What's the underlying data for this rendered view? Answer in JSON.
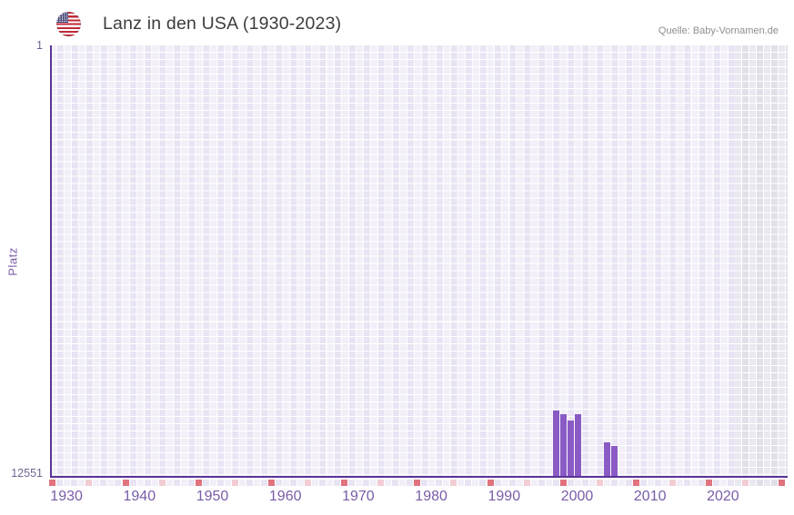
{
  "header": {
    "title": "Lanz in den USA (1930-2023)",
    "source": "Quelle: Baby-Vornamen.de",
    "flag_icon": "us-flag-icon"
  },
  "chart_data": {
    "type": "bar",
    "title": "Lanz in den USA (1930-2023)",
    "xlabel": "",
    "ylabel": "Platz",
    "y_axis": {
      "top_label": "1",
      "bottom_label": "12551",
      "min": 1,
      "max": 12551,
      "inverted": true
    },
    "x_axis": {
      "start_year": 1930,
      "end_year": 2030,
      "tick_labels": [
        "1930",
        "1940",
        "1950",
        "1960",
        "1970",
        "1980",
        "1990",
        "2000",
        "2010",
        "2020"
      ],
      "decade_marker_years": [
        1930,
        1940,
        1950,
        1960,
        1970,
        1980,
        1990,
        2000,
        2010,
        2020,
        2030
      ],
      "mid_decade_marker_years": [
        1935,
        1945,
        1955,
        1965,
        1975,
        1985,
        1995,
        2005,
        2015,
        2025
      ],
      "future_band_start_year": 2024
    },
    "grid": "checkerboard",
    "legend": "none",
    "series": [
      {
        "name": "Lanz",
        "points": [
          {
            "year": 1999,
            "rank": 10650
          },
          {
            "year": 2000,
            "rank": 10760
          },
          {
            "year": 2001,
            "rank": 10930
          },
          {
            "year": 2002,
            "rank": 10750
          },
          {
            "year": 2006,
            "rank": 11570
          },
          {
            "year": 2007,
            "rank": 11690
          }
        ]
      }
    ]
  },
  "colors": {
    "bar": "#8a5bc5",
    "axis": "#5b3496",
    "decade_marker": "#e0737e",
    "mid_decade_marker": "#f2cdd4",
    "cell_light": "#f2eff8",
    "cell_dark": "#e9e4f3",
    "band_cell_light": "#eae8f0",
    "band_cell_dark": "#e2dfe9",
    "x_tick_text": "#7a5ca8",
    "y_tick_text": "#6f6590"
  }
}
